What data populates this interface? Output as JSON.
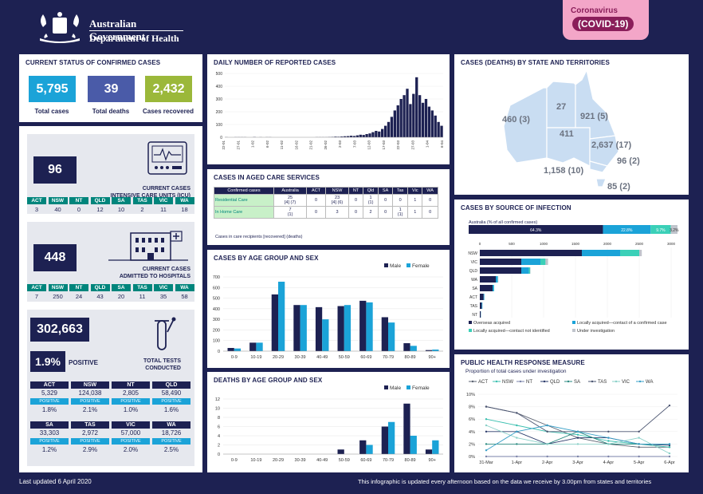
{
  "header": {
    "gov_line1": "Australian Government",
    "gov_line2": "Department of Health",
    "covid_line1": "Coronavirus",
    "covid_line2": "(COVID-19)"
  },
  "status": {
    "title": "CURRENT STATUS OF CONFIRMED CASES",
    "total_cases": "5,795",
    "total_cases_label": "Total cases",
    "total_deaths": "39",
    "total_deaths_label": "Total deaths",
    "recovered": "2,432",
    "recovered_label": "Cases recovered",
    "colors": {
      "cases": "#1ba3d8",
      "deaths": "#4a5ba8",
      "recovered": "#9bb83a"
    }
  },
  "icu": {
    "value": "96",
    "label1": "CURRENT CASES",
    "label2": "INTENSIVE CARE UNITS (ICU)",
    "states": [
      "ACT",
      "NSW",
      "NT",
      "QLD",
      "SA",
      "TAS",
      "VIC",
      "WA"
    ],
    "values": [
      "3",
      "40",
      "0",
      "12",
      "10",
      "2",
      "11",
      "18"
    ]
  },
  "hospital": {
    "value": "448",
    "label1": "CURRENT CASES",
    "label2": "ADMITTED TO HOSPITALS",
    "states": [
      "ACT",
      "NSW",
      "NT",
      "QLD",
      "SA",
      "TAS",
      "VIC",
      "WA"
    ],
    "values": [
      "7",
      "250",
      "24",
      "43",
      "20",
      "11",
      "35",
      "58"
    ]
  },
  "tests": {
    "value": "302,663",
    "positive_pct": "1.9%",
    "positive_label": "POSITIVE",
    "label1": "TOTAL TESTS",
    "label2": "CONDUCTED",
    "states": [
      {
        "name": "ACT",
        "tests": "5,329",
        "pos_label": "POSITIVE",
        "pct": "1.8%"
      },
      {
        "name": "NSW",
        "tests": "124,038",
        "pos_label": "POSITIVE",
        "pct": "2.1%"
      },
      {
        "name": "NT",
        "tests": "2,805",
        "pos_label": "POSITIVE",
        "pct": "1.0%"
      },
      {
        "name": "QLD",
        "tests": "58,490",
        "pos_label": "POSITIVE",
        "pct": "1.6%"
      },
      {
        "name": "SA",
        "tests": "33,303",
        "pos_label": "POSITIVE",
        "pct": "1.2%"
      },
      {
        "name": "TAS",
        "tests": "2,972",
        "pos_label": "POSITIVE",
        "pct": "2.9%"
      },
      {
        "name": "VIC",
        "tests": "57,000",
        "pos_label": "POSITIVE",
        "pct": "2.0%"
      },
      {
        "name": "WA",
        "tests": "18,726",
        "pos_label": "POSITIVE",
        "pct": "2.5%"
      }
    ]
  },
  "aged_care": {
    "title": "CASES IN AGED CARE SERVICES",
    "headers": [
      "Confirmed cases",
      "Australia",
      "ACT",
      "NSW",
      "NT",
      "Qld",
      "SA",
      "Tas",
      "Vic",
      "WA"
    ],
    "rows": [
      {
        "label": "Residential Care",
        "cells": [
          "25\n[4] (7)",
          "0",
          "23\n[4] (6)",
          "0",
          "1\n(1)",
          "0",
          "0",
          "1",
          "0"
        ]
      },
      {
        "label": "In Home Care",
        "cells": [
          "7\n(1)",
          "0",
          "3",
          "0",
          "2",
          "0",
          "1\n(1)",
          "1",
          "0"
        ]
      }
    ],
    "note": "Cases in care recipients [recovered] (deaths)"
  },
  "map": {
    "title": "CASES (DEATHS) BY STATE AND TERRITORIES",
    "labels": [
      {
        "state": "WA",
        "text": "460 (3)"
      },
      {
        "state": "NT",
        "text": "27"
      },
      {
        "state": "QLD",
        "text": "921 (5)"
      },
      {
        "state": "SA",
        "text": "411"
      },
      {
        "state": "NSW",
        "text": "2,637 (17)"
      },
      {
        "state": "ACT",
        "text": "96 (2)"
      },
      {
        "state": "VIC",
        "text": "1,158 (10)"
      },
      {
        "state": "TAS",
        "text": "85 (2)"
      }
    ]
  },
  "footer": {
    "updated": "Last updated 6 April 2020",
    "note": "This infographic is updated every afternoon based on the data we receive by 3.00pm from states and territories"
  },
  "chart_data": [
    {
      "id": "daily",
      "type": "bar",
      "title": "DAILY NUMBER OF REPORTED CASES",
      "ylim": [
        0,
        500
      ],
      "yticks": [
        0,
        100,
        200,
        300,
        400,
        500
      ],
      "xtick_labels": [
        "22-01",
        "27-01",
        "1-02",
        "6-02",
        "11-02",
        "16-02",
        "21-02",
        "26-02",
        "2-03",
        "7-03",
        "12-03",
        "17-03",
        "22-03",
        "27-03",
        "1-04",
        "6-04"
      ],
      "values": [
        1,
        0,
        0,
        1,
        1,
        1,
        1,
        0,
        0,
        2,
        0,
        1,
        0,
        1,
        1,
        0,
        0,
        0,
        0,
        0,
        0,
        0,
        0,
        0,
        0,
        0,
        0,
        0,
        0,
        1,
        1,
        1,
        1,
        2,
        3,
        5,
        4,
        6,
        8,
        9,
        12,
        10,
        15,
        20,
        18,
        25,
        30,
        40,
        50,
        45,
        65,
        90,
        120,
        160,
        210,
        250,
        300,
        330,
        380,
        260,
        340,
        470,
        330,
        270,
        300,
        240,
        210,
        170,
        120,
        90
      ]
    },
    {
      "id": "age",
      "type": "bar",
      "title": "CASES BY AGE GROUP AND SEX",
      "categories": [
        "0-9",
        "10-19",
        "20-29",
        "30-39",
        "40-49",
        "50-59",
        "60-69",
        "70-79",
        "80-89",
        "90+"
      ],
      "series": [
        {
          "name": "Male",
          "values": [
            30,
            80,
            535,
            435,
            415,
            425,
            475,
            320,
            75,
            10
          ]
        },
        {
          "name": "Female",
          "values": [
            25,
            80,
            655,
            435,
            300,
            435,
            460,
            270,
            50,
            15
          ]
        }
      ],
      "ylim": [
        0,
        700
      ],
      "yticks": [
        0,
        100,
        200,
        300,
        400,
        500,
        600,
        700
      ]
    },
    {
      "id": "deaths",
      "type": "bar",
      "title": "DEATHS BY AGE GROUP AND SEX",
      "categories": [
        "0-9",
        "10-19",
        "20-29",
        "30-39",
        "40-49",
        "50-59",
        "60-69",
        "70-79",
        "80-89",
        "90+"
      ],
      "series": [
        {
          "name": "Male",
          "values": [
            0,
            0,
            0,
            0,
            0,
            1,
            3,
            6,
            11,
            1
          ]
        },
        {
          "name": "Female",
          "values": [
            0,
            0,
            0,
            0,
            0,
            0,
            2,
            7,
            4,
            3
          ]
        }
      ],
      "ylim": [
        0,
        12
      ],
      "yticks": [
        0,
        2,
        4,
        6,
        8,
        10,
        12
      ]
    },
    {
      "id": "source_total",
      "type": "bar",
      "title": "CASES BY SOURCE OF INFECTION",
      "subtitle": "Australia (% of all confirmed cases)",
      "segments": [
        {
          "name": "Overseas acquired",
          "pct": "64.3%",
          "value": 64.3,
          "color": "#1d2152"
        },
        {
          "name": "Locally acquired—contact of a confirmed case",
          "pct": "22.8%",
          "value": 22.8,
          "color": "#1ba3d8"
        },
        {
          "name": "Locally acquired—contact not identified",
          "pct": "9.7%",
          "value": 9.7,
          "color": "#3bd0b8"
        },
        {
          "name": "Under investigation",
          "pct": "3.2%",
          "value": 3.2,
          "color": "#c0c4cc"
        }
      ]
    },
    {
      "id": "source_state",
      "type": "bar",
      "xlim": [
        0,
        3000
      ],
      "xticks": [
        0,
        500,
        1000,
        1500,
        2000,
        2500,
        3000
      ],
      "categories": [
        "NSW",
        "VIC",
        "QLD",
        "WA",
        "SA",
        "ACT",
        "TAS",
        "NT"
      ],
      "series": [
        {
          "name": "Overseas acquired",
          "values": [
            1600,
            650,
            650,
            250,
            200,
            60,
            30,
            15
          ]
        },
        {
          "name": "Locally acquired—contact of a confirmed case",
          "values": [
            600,
            300,
            120,
            30,
            20,
            10,
            10,
            3
          ]
        },
        {
          "name": "Locally acquired—contact not identified",
          "values": [
            300,
            80,
            20,
            5,
            5,
            0,
            0,
            0
          ]
        },
        {
          "name": "Under investigation",
          "values": [
            40,
            40,
            5,
            5,
            0,
            0,
            0,
            0
          ]
        }
      ],
      "legend": [
        "Overseas acquired",
        "Locally acquired—contact of a confirmed case",
        "Locally acquired—contact not identified",
        "Under investigation"
      ]
    },
    {
      "id": "public_health",
      "type": "line",
      "title": "PUBLIC HEALTH RESPONSE MEASURE",
      "subtitle": "Proportion of total cases under investigation",
      "x": [
        "31-Mar",
        "1-Apr",
        "2-Apr",
        "3-Apr",
        "4-Apr",
        "5-Apr",
        "6-Apr"
      ],
      "ylim": [
        0,
        10
      ],
      "ytick_labels": [
        "0%",
        "2%",
        "4%",
        "6%",
        "8%",
        "10%"
      ],
      "series": [
        {
          "name": "ACT",
          "values": [
            8,
            7,
            5,
            3,
            2,
            1.5,
            1.5
          ]
        },
        {
          "name": "NSW",
          "values": [
            6,
            5,
            4,
            3.5,
            2.5,
            2,
            1.5
          ]
        },
        {
          "name": "NT",
          "values": [
            0,
            0,
            0,
            0,
            0,
            0,
            0
          ]
        },
        {
          "name": "QLD",
          "values": [
            4,
            4,
            2,
            3,
            3,
            2,
            1.8
          ]
        },
        {
          "name": "SA",
          "values": [
            2,
            2,
            2,
            4,
            2,
            2,
            2
          ]
        },
        {
          "name": "TAS",
          "values": [
            8,
            7,
            4,
            4,
            4,
            4,
            8.2
          ]
        },
        {
          "name": "VIC",
          "values": [
            5,
            3,
            2,
            2,
            2,
            3,
            0.5
          ]
        },
        {
          "name": "WA",
          "values": [
            1,
            4,
            5,
            4,
            3,
            2,
            2
          ]
        }
      ]
    }
  ]
}
